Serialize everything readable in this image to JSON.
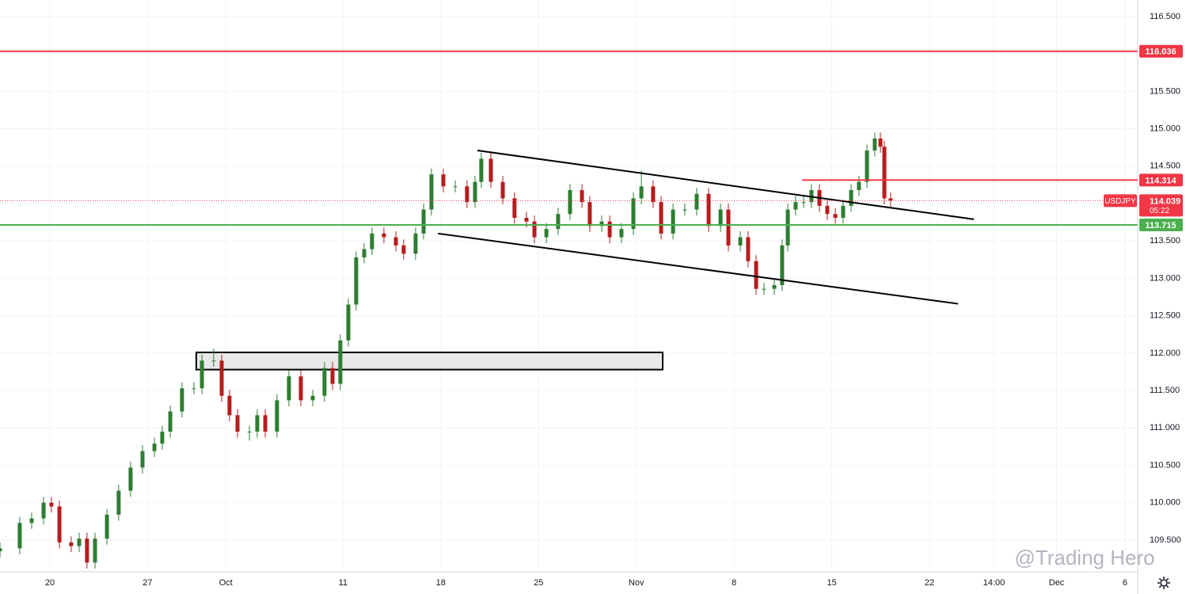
{
  "chart_data": {
    "type": "candlestick",
    "symbol": "USDJPY",
    "watermark": "@Trading Hero",
    "up_color": "#2e7d32",
    "down_color": "#b71c1c",
    "xlim": [
      -2.55,
      55.65
    ],
    "ylim": [
      109.076,
      116.722
    ],
    "grid": true,
    "xticks": [
      {
        "value": 0,
        "label": "20"
      },
      {
        "value": 5,
        "label": "27"
      },
      {
        "value": 9,
        "label": "Oct"
      },
      {
        "value": 15,
        "label": "11"
      },
      {
        "value": 20,
        "label": "18"
      },
      {
        "value": 25,
        "label": "25"
      },
      {
        "value": 30,
        "label": "Nov"
      },
      {
        "value": 35,
        "label": "8"
      },
      {
        "value": 40,
        "label": "15"
      },
      {
        "value": 45,
        "label": "22"
      },
      {
        "value": 48.3,
        "label": "14:00"
      },
      {
        "value": 51.5,
        "label": "Dec"
      },
      {
        "value": 55,
        "label": "6"
      }
    ],
    "yticks": [
      {
        "value": 109.5,
        "label": "109.500"
      },
      {
        "value": 110,
        "label": "110.000"
      },
      {
        "value": 110.5,
        "label": "110.500"
      },
      {
        "value": 111,
        "label": "111.000"
      },
      {
        "value": 111.5,
        "label": "111.500"
      },
      {
        "value": 112,
        "label": "112.000"
      },
      {
        "value": 112.5,
        "label": "112.500"
      },
      {
        "value": 113,
        "label": "113.000"
      },
      {
        "value": 113.5,
        "label": "113.500"
      },
      {
        "value": 114,
        "label": "114.000"
      },
      {
        "value": 114.5,
        "label": "114.500"
      },
      {
        "value": 115,
        "label": "115.000"
      },
      {
        "value": 115.5,
        "label": "115.500"
      },
      {
        "value": 116,
        "label": "116.000"
      },
      {
        "value": 116.5,
        "label": "116.500"
      }
    ],
    "x": [
      -2.55,
      -1.54,
      -0.93,
      -0.32,
      0.08,
      0.49,
      1.09,
      1.5,
      1.9,
      2.31,
      2.92,
      3.52,
      4.13,
      4.74,
      5.35,
      5.75,
      6.16,
      6.76,
      7.37,
      7.78,
      8.38,
      8.79,
      9.19,
      9.6,
      10.21,
      10.61,
      11.02,
      11.62,
      12.23,
      12.84,
      13.45,
      14.05,
      14.46,
      14.86,
      15.27,
      15.67,
      16.08,
      16.48,
      17.09,
      17.7,
      18.1,
      18.71,
      19.12,
      19.52,
      20.13,
      20.74,
      21.34,
      21.75,
      22.07,
      22.56,
      23.17,
      23.77,
      24.38,
      24.79,
      25.4,
      26.0,
      26.61,
      27.22,
      27.62,
      28.23,
      28.64,
      29.24,
      29.85,
      30.26,
      30.86,
      31.27,
      31.88,
      32.48,
      33.09,
      33.7,
      34.31,
      34.71,
      35.32,
      35.72,
      36.13,
      36.53,
      37.06,
      37.46,
      37.75,
      38.15,
      38.56,
      38.96,
      39.37,
      39.77,
      40.18,
      40.58,
      40.99,
      41.39,
      41.8,
      42.2,
      42.49,
      42.69,
      43.01
    ],
    "open": [
      109.35,
      109.39,
      109.73,
      109.79,
      110.0,
      109.95,
      109.47,
      109.42,
      109.52,
      109.2,
      109.52,
      109.84,
      110.16,
      110.47,
      110.69,
      110.79,
      110.95,
      111.22,
      111.53,
      111.53,
      111.9,
      111.9,
      111.43,
      111.17,
      110.95,
      110.95,
      111.17,
      110.95,
      111.37,
      111.69,
      111.37,
      111.43,
      111.8,
      111.59,
      112.17,
      112.65,
      113.28,
      113.39,
      113.6,
      113.55,
      113.44,
      113.33,
      113.6,
      113.92,
      114.39,
      114.23,
      114.23,
      114.02,
      114.29,
      114.6,
      114.29,
      114.07,
      113.81,
      113.76,
      113.55,
      113.66,
      113.86,
      114.18,
      114.02,
      113.7,
      113.76,
      113.55,
      113.66,
      114.07,
      114.23,
      114.02,
      113.6,
      113.92,
      113.92,
      114.13,
      113.7,
      113.92,
      113.44,
      113.55,
      113.23,
      112.86,
      112.86,
      112.91,
      113.44,
      113.92,
      114.02,
      114.02,
      114.18,
      113.97,
      113.86,
      113.81,
      113.97,
      114.18,
      114.29,
      114.71,
      114.87,
      114.76,
      114.07
    ],
    "high": [
      109.47,
      109.81,
      109.87,
      110.08,
      110.08,
      110.03,
      109.55,
      109.6,
      109.6,
      109.6,
      109.92,
      110.24,
      110.55,
      110.77,
      110.87,
      111.03,
      111.3,
      111.61,
      111.61,
      111.98,
      112.06,
      111.98,
      111.51,
      111.25,
      111.03,
      111.25,
      111.25,
      111.45,
      111.77,
      111.77,
      111.51,
      111.88,
      111.88,
      112.25,
      112.73,
      113.36,
      113.47,
      113.68,
      113.68,
      113.63,
      113.52,
      113.68,
      114.0,
      114.47,
      114.47,
      114.31,
      114.31,
      114.37,
      114.68,
      114.68,
      114.37,
      114.15,
      113.89,
      113.84,
      113.74,
      113.94,
      114.26,
      114.26,
      114.1,
      113.84,
      113.84,
      113.74,
      114.15,
      114.44,
      114.31,
      114.1,
      114.0,
      114.0,
      114.21,
      114.21,
      114.0,
      114.0,
      113.63,
      113.63,
      113.31,
      112.94,
      112.99,
      113.52,
      114.0,
      114.1,
      114.1,
      114.26,
      114.26,
      114.05,
      113.94,
      114.05,
      114.26,
      114.37,
      114.79,
      114.95,
      114.95,
      114.84,
      114.15
    ],
    "low": [
      109.27,
      109.31,
      109.65,
      109.71,
      109.87,
      109.39,
      109.34,
      109.34,
      109.12,
      109.12,
      109.44,
      109.76,
      110.08,
      110.39,
      110.61,
      110.71,
      110.87,
      111.14,
      111.45,
      111.45,
      111.82,
      111.35,
      111.09,
      110.87,
      110.83,
      110.87,
      110.87,
      110.87,
      111.29,
      111.29,
      111.29,
      111.35,
      111.51,
      111.51,
      112.09,
      112.57,
      113.2,
      113.31,
      113.47,
      113.36,
      113.25,
      113.25,
      113.52,
      113.84,
      114.15,
      114.15,
      113.94,
      113.94,
      114.21,
      114.21,
      113.99,
      113.73,
      113.68,
      113.47,
      113.47,
      113.58,
      113.78,
      113.94,
      113.62,
      113.62,
      113.47,
      113.47,
      113.58,
      113.99,
      113.94,
      113.52,
      113.52,
      113.84,
      113.84,
      113.62,
      113.62,
      113.36,
      113.36,
      113.15,
      112.78,
      112.78,
      112.78,
      112.83,
      113.36,
      113.84,
      113.94,
      113.94,
      113.89,
      113.78,
      113.73,
      113.73,
      113.89,
      114.1,
      114.21,
      114.63,
      114.68,
      113.99,
      113.96
    ],
    "close": [
      109.39,
      109.73,
      109.79,
      110.0,
      109.95,
      109.47,
      109.42,
      109.52,
      109.2,
      109.52,
      109.84,
      110.16,
      110.47,
      110.69,
      110.79,
      110.95,
      111.22,
      111.53,
      111.53,
      111.9,
      111.9,
      111.43,
      111.17,
      110.95,
      110.95,
      111.17,
      110.95,
      111.37,
      111.69,
      111.37,
      111.43,
      111.8,
      111.59,
      112.17,
      112.65,
      113.28,
      113.39,
      113.6,
      113.55,
      113.44,
      113.33,
      113.6,
      113.92,
      114.39,
      114.23,
      114.23,
      114.02,
      114.29,
      114.6,
      114.29,
      114.07,
      113.81,
      113.76,
      113.55,
      113.66,
      113.86,
      114.18,
      114.02,
      113.7,
      113.76,
      113.55,
      113.66,
      114.07,
      114.23,
      114.02,
      113.6,
      113.92,
      113.92,
      114.13,
      113.7,
      113.92,
      113.44,
      113.55,
      113.23,
      112.86,
      112.86,
      112.91,
      113.44,
      113.92,
      114.02,
      114.02,
      114.18,
      113.97,
      113.86,
      113.81,
      113.97,
      114.18,
      114.29,
      114.71,
      114.87,
      114.76,
      114.07,
      114.04
    ],
    "lines": [
      {
        "value": 116.036,
        "color": "#f23645"
      },
      {
        "value": 113.715,
        "color": "#4caf50"
      },
      {
        "value": 114.314,
        "color": "#f23645",
        "x_start": 38.48
      }
    ],
    "last_price": {
      "value": 114.039,
      "countdown": "05:22",
      "color": "#f23645"
    },
    "trendlines": [
      {
        "x": [
          21.87,
          47.27
        ],
        "y": [
          114.71,
          113.79
        ]
      },
      {
        "x": [
          19.85,
          46.46
        ],
        "y": [
          113.6,
          112.66
        ]
      }
    ],
    "zone": {
      "x": [
        7.49,
        31.35
      ],
      "y": [
        112.01,
        111.78
      ]
    }
  }
}
